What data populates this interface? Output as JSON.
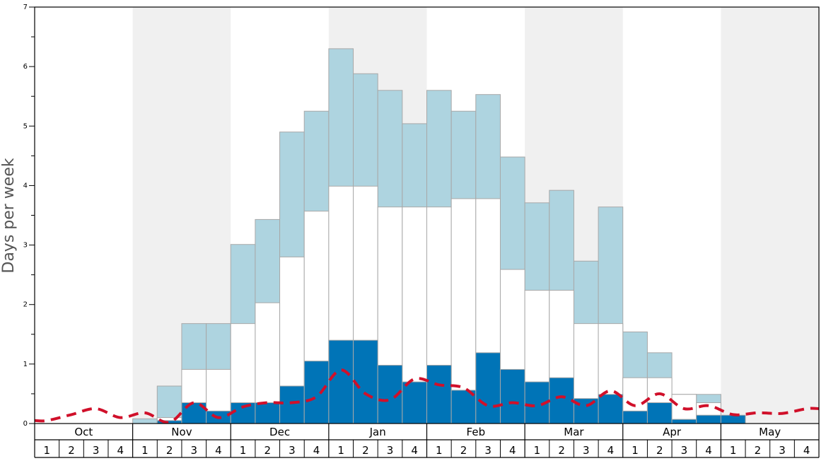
{
  "chart_data": {
    "type": "bar",
    "ylabel": "Days per week",
    "ylim": [
      0,
      7
    ],
    "yticks": [
      0,
      1,
      2,
      3,
      4,
      5,
      6,
      7
    ],
    "months": [
      "Oct",
      "Nov",
      "Dec",
      "Jan",
      "Feb",
      "Mar",
      "Apr",
      "May"
    ],
    "week_labels": [
      "1",
      "2",
      "3",
      "4"
    ],
    "grid": false,
    "legend": "none",
    "colors": {
      "upper": "#aed4e0",
      "middle": "#ffffff",
      "lower": "#0074b7",
      "line": "#d0102a",
      "band": "#f0f0f0",
      "bar_edge": "#a8a8a8"
    },
    "series": [
      {
        "name": "",
        "values": [
          0,
          0,
          0,
          0,
          0.08,
          0.63,
          1.68,
          1.68,
          3.01,
          3.43,
          4.9,
          5.25,
          6.3,
          5.88,
          5.6,
          5.04,
          5.6,
          5.25,
          5.53,
          4.48,
          3.71,
          3.92,
          2.73,
          3.64,
          1.54,
          1.19,
          0.49,
          0.49,
          0,
          0,
          0,
          0
        ]
      },
      {
        "name": "",
        "values": [
          0,
          0,
          0,
          0,
          0,
          0.1,
          0.91,
          0.91,
          1.68,
          2.03,
          2.8,
          3.57,
          3.99,
          3.99,
          3.64,
          3.64,
          3.64,
          3.78,
          3.78,
          2.59,
          2.24,
          2.24,
          1.68,
          1.68,
          0.77,
          0.77,
          0.49,
          0.35,
          0,
          0,
          0,
          0
        ]
      },
      {
        "name": "",
        "values": [
          0,
          0,
          0,
          0,
          0,
          0.05,
          0.35,
          0.21,
          0.35,
          0.35,
          0.63,
          1.05,
          1.4,
          1.4,
          0.98,
          0.7,
          0.98,
          0.56,
          1.19,
          0.91,
          0.7,
          0.77,
          0.42,
          0.49,
          0.21,
          0.35,
          0.07,
          0.14,
          0.14,
          0,
          0,
          0
        ]
      },
      {
        "name": "",
        "values": [
          0.05,
          0.15,
          0.25,
          0.1,
          0.18,
          0.02,
          0.35,
          0.1,
          0.28,
          0.35,
          0.35,
          0.45,
          0.9,
          0.5,
          0.4,
          0.75,
          0.65,
          0.6,
          0.3,
          0.35,
          0.3,
          0.45,
          0.3,
          0.55,
          0.3,
          0.5,
          0.25,
          0.3,
          0.15,
          0.18,
          0.17,
          0.25
        ]
      }
    ]
  }
}
